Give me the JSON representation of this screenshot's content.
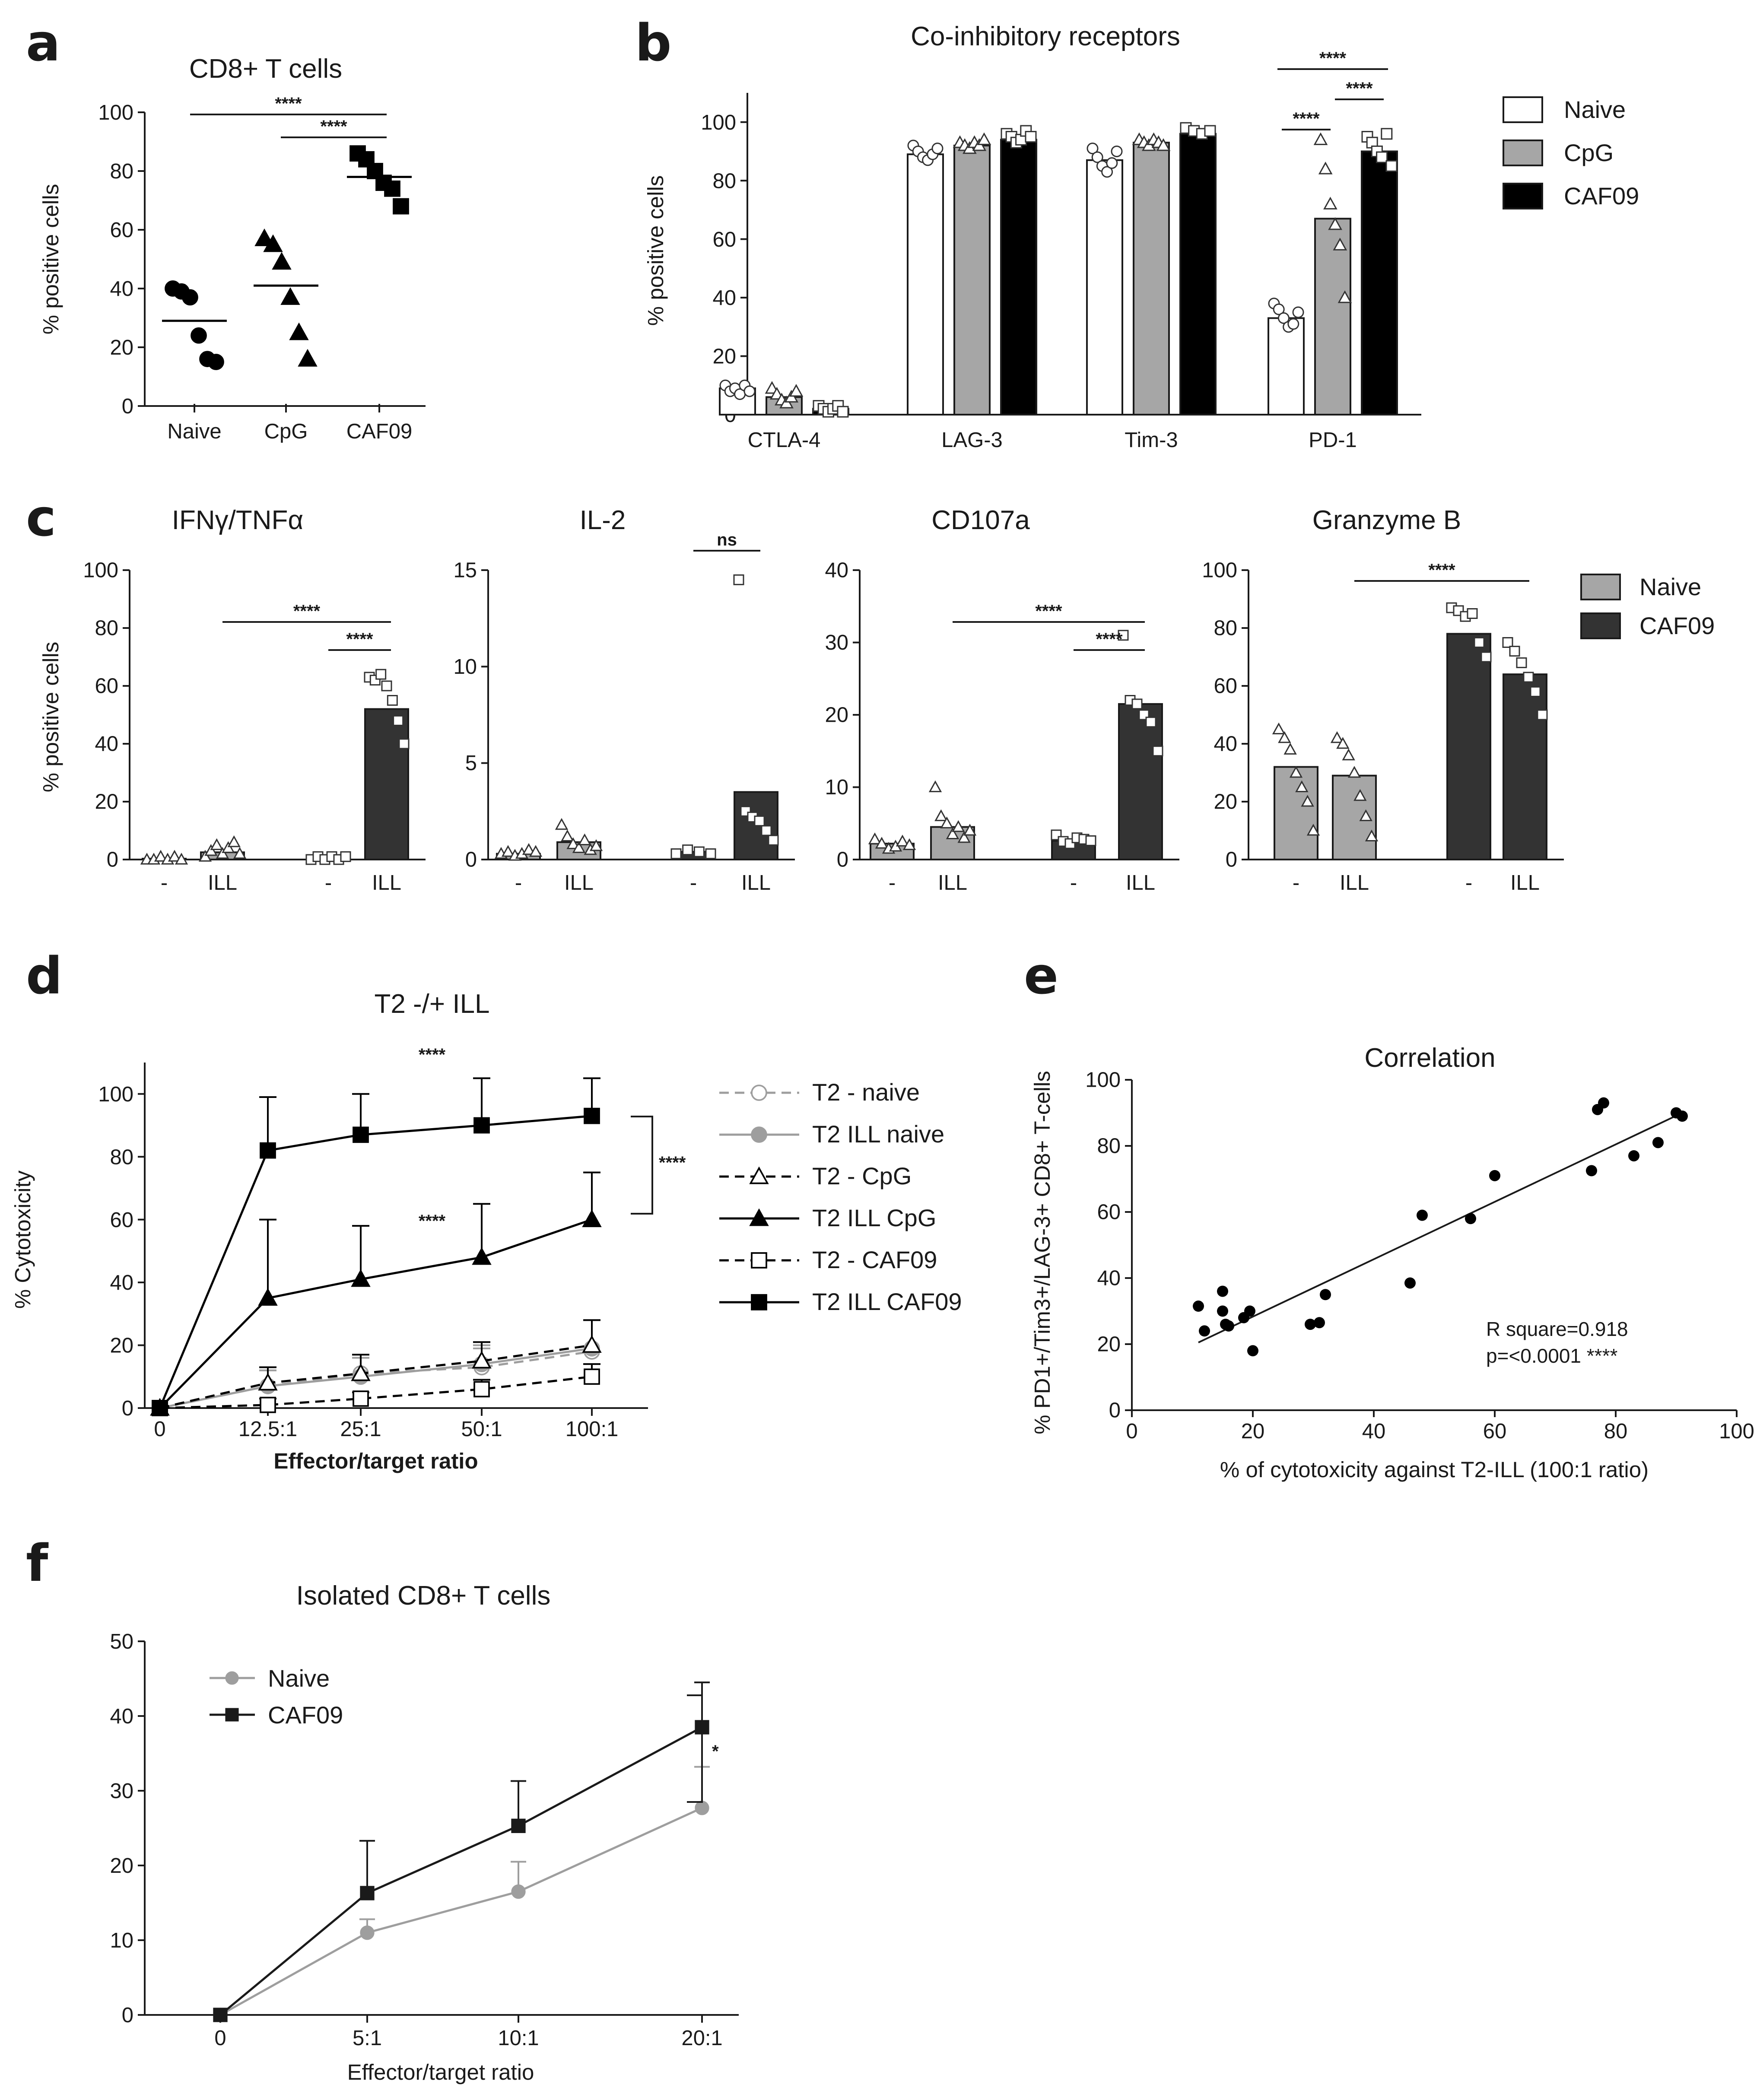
{
  "panels": {
    "a": {
      "letter": "a",
      "chart_data": {
        "type": "scatter",
        "title": "CD8+ T cells",
        "ylabel": "% positive cells",
        "ylim": [
          0,
          100
        ],
        "yticks": [
          0,
          20,
          40,
          60,
          80,
          100
        ],
        "categories": [
          "Naive",
          "CpG",
          "CAF09"
        ],
        "groups": [
          {
            "name": "Naive",
            "marker": "circle",
            "values": [
              40,
              39,
              37,
              24,
              16,
              15
            ],
            "mean": 29
          },
          {
            "name": "CpG",
            "marker": "triangle",
            "values": [
              57,
              55,
              49,
              37,
              25,
              16
            ],
            "mean": 41
          },
          {
            "name": "CAF09",
            "marker": "square",
            "values": [
              86,
              84,
              80,
              76,
              74,
              68
            ],
            "mean": 78
          }
        ],
        "annotations": [
          {
            "from": "Naive",
            "to": "CAF09",
            "label": "****"
          },
          {
            "from": "CpG",
            "to": "CAF09",
            "label": "****"
          }
        ]
      }
    },
    "b": {
      "letter": "b",
      "chart_data": {
        "type": "bar",
        "title": "Co-inhibitory receptors",
        "ylabel": "% positive cells",
        "ylim": [
          0,
          110
        ],
        "yticks": [
          0,
          20,
          40,
          60,
          80,
          100
        ],
        "categories": [
          "CTLA-4",
          "LAG-3",
          "Tim-3",
          "PD-1"
        ],
        "series": [
          {
            "name": "Naive",
            "color": "#ffffff",
            "marker": "circle",
            "values": [
              9,
              89,
              87,
              33
            ],
            "points": [
              [
                10,
                8,
                9,
                7,
                10,
                8
              ],
              [
                92,
                90,
                88,
                87,
                89,
                91
              ],
              [
                91,
                88,
                85,
                83,
                86,
                90
              ],
              [
                38,
                36,
                33,
                30,
                31,
                35
              ]
            ]
          },
          {
            "name": "CpG",
            "color": "#a6a6a6",
            "marker": "triangle",
            "values": [
              6,
              92,
              93,
              67
            ],
            "points": [
              [
                9,
                7,
                5,
                4,
                6,
                8
              ],
              [
                93,
                92,
                91,
                93,
                92,
                94
              ],
              [
                94,
                93,
                92,
                94,
                93,
                92
              ],
              [
                94,
                84,
                72,
                65,
                58,
                40
              ]
            ]
          },
          {
            "name": "CAF09",
            "color": "#000000",
            "marker": "square",
            "values": [
              2,
              94,
              96,
              90
            ],
            "points": [
              [
                3,
                2,
                1,
                2,
                3,
                1
              ],
              [
                96,
                95,
                93,
                94,
                97,
                95
              ],
              [
                98,
                97,
                96,
                97
              ],
              [
                95,
                93,
                90,
                88,
                96,
                85
              ]
            ]
          }
        ],
        "annotations": [
          {
            "category": "PD-1",
            "from": "Naive",
            "to": "CAF09",
            "label": "****"
          },
          {
            "category": "PD-1",
            "from": "Naive",
            "to": "CpG",
            "label": "****"
          },
          {
            "category": "PD-1",
            "from": "CpG",
            "to": "CAF09",
            "label": "****"
          }
        ],
        "legend": "right"
      }
    },
    "c": {
      "letter": "c",
      "legend_items": [
        {
          "name": "Naive",
          "color": "#a6a6a6"
        },
        {
          "name": "CAF09",
          "color": "#333333"
        }
      ],
      "chart_data": [
        {
          "type": "bar",
          "title": "IFNγ/TNFα",
          "ylabel": "% positive cells",
          "ylim": [
            0,
            100
          ],
          "yticks": [
            0,
            20,
            40,
            60,
            80,
            100
          ],
          "categories": [
            "-",
            "ILL",
            "-",
            "ILL"
          ],
          "groups": [
            "Naive",
            "Naive",
            "CAF09",
            "CAF09"
          ],
          "values": [
            0.3,
            2.5,
            0.5,
            52
          ],
          "points": [
            [
              0,
              0,
              1,
              0,
              1,
              0
            ],
            [
              1,
              3,
              5,
              2,
              4,
              6,
              2
            ],
            [
              0,
              1,
              0,
              1,
              0,
              1
            ],
            [
              63,
              62,
              64,
              60,
              55,
              48,
              40
            ]
          ],
          "annotations": [
            {
              "from": 1,
              "to": 3,
              "label": "****"
            },
            {
              "from": 2,
              "to": 3,
              "label": "****"
            }
          ]
        },
        {
          "type": "bar",
          "title": "IL-2",
          "ylabel": "",
          "ylim": [
            0,
            15
          ],
          "yticks": [
            0,
            5,
            10,
            15
          ],
          "categories": [
            "-",
            "ILL",
            "-",
            "ILL"
          ],
          "groups": [
            "Naive",
            "Naive",
            "CAF09",
            "CAF09"
          ],
          "values": [
            0.3,
            0.9,
            0.4,
            3.5
          ],
          "points": [
            [
              0.3,
              0.4,
              0.2,
              0.3,
              0.5,
              0.4
            ],
            [
              1.8,
              1.2,
              0.8,
              0.6,
              1.0,
              0.5,
              0.7
            ],
            [
              0.3,
              0.5,
              0.4,
              0.3
            ],
            [
              14.5,
              2.5,
              2.2,
              2.0,
              1.5,
              1.0
            ]
          ],
          "annotations": [
            {
              "from": 2,
              "to": 3,
              "label": "ns"
            }
          ]
        },
        {
          "type": "bar",
          "title": "CD107a",
          "ylabel": "",
          "ylim": [
            0,
            40
          ],
          "yticks": [
            0,
            10,
            20,
            30,
            40
          ],
          "categories": [
            "-",
            "ILL",
            "-",
            "ILL"
          ],
          "groups": [
            "Naive",
            "Naive",
            "CAF09",
            "CAF09"
          ],
          "values": [
            2.2,
            4.5,
            2.6,
            21.5
          ],
          "points": [
            [
              2.8,
              2.2,
              1.5,
              1.8,
              2.5,
              2.0
            ],
            [
              10,
              6,
              5,
              3.5,
              4.5,
              3,
              4
            ],
            [
              3.4,
              2.5,
              2.2,
              3.0,
              2.8,
              2.6
            ],
            [
              31,
              22,
              21.5,
              20,
              19,
              15
            ]
          ],
          "annotations": [
            {
              "from": 1,
              "to": 3,
              "label": "****"
            },
            {
              "from": 2,
              "to": 3,
              "label": "****"
            }
          ]
        },
        {
          "type": "bar",
          "title": "Granzyme B",
          "ylabel": "",
          "ylim": [
            0,
            100
          ],
          "yticks": [
            0,
            20,
            40,
            60,
            80,
            100
          ],
          "categories": [
            "-",
            "ILL",
            "-",
            "ILL"
          ],
          "groups": [
            "Naive",
            "Naive",
            "CAF09",
            "CAF09"
          ],
          "values": [
            32,
            29,
            78,
            64
          ],
          "points": [
            [
              45,
              42,
              38,
              30,
              25,
              20,
              10
            ],
            [
              42,
              40,
              36,
              30,
              22,
              15,
              8
            ],
            [
              87,
              86,
              84,
              85,
              75,
              70
            ],
            [
              75,
              72,
              68,
              63,
              58,
              50
            ]
          ],
          "annotations": [
            {
              "from": 1,
              "to": 3,
              "label": "****"
            }
          ]
        }
      ]
    },
    "d": {
      "letter": "d",
      "chart_data": {
        "type": "line",
        "title": "T2 -/+ ILL",
        "xlabel": "Effector/target ratio",
        "ylabel": "% Cytotoxicity",
        "ylim": [
          0,
          110
        ],
        "yticks": [
          0,
          20,
          40,
          60,
          80,
          100
        ],
        "x": [
          "0",
          "12.5:1",
          "25:1",
          "50:1",
          "100:1"
        ],
        "series": [
          {
            "name": "T2 - naive",
            "values": [
              0,
              7,
              11,
              13,
              18
            ],
            "err": [
              0,
              5,
              5,
              6,
              10
            ],
            "color": "#9e9e9e",
            "dashed": true,
            "marker": "circle",
            "filled": false
          },
          {
            "name": "T2 ILL naive",
            "values": [
              0,
              7,
              10,
              14,
              19
            ],
            "err": [
              0,
              5,
              6,
              6,
              9
            ],
            "color": "#9e9e9e",
            "dashed": false,
            "marker": "circle",
            "filled": true
          },
          {
            "name": "T2 - CpG",
            "values": [
              0,
              8,
              11,
              15,
              20
            ],
            "err": [
              0,
              5,
              6,
              6,
              8
            ],
            "color": "#000000",
            "dashed": true,
            "marker": "triangle",
            "filled": false
          },
          {
            "name": "T2 ILL CpG",
            "values": [
              0,
              35,
              41,
              48,
              60
            ],
            "err": [
              0,
              25,
              17,
              17,
              15
            ],
            "color": "#000000",
            "dashed": false,
            "marker": "triangle",
            "filled": true
          },
          {
            "name": "T2 - CAF09",
            "values": [
              0,
              1,
              3,
              6,
              10
            ],
            "err": [
              0,
              2,
              2,
              3,
              4
            ],
            "color": "#000000",
            "dashed": true,
            "marker": "square",
            "filled": false
          },
          {
            "name": "T2 ILL CAF09",
            "values": [
              0,
              82,
              87,
              90,
              93
            ],
            "err": [
              0,
              17,
              13,
              15,
              12
            ],
            "color": "#000000",
            "dashed": false,
            "marker": "square",
            "filled": true
          }
        ],
        "annotations": [
          {
            "label": "****",
            "position": "above CAF09 line"
          },
          {
            "label": "****",
            "position": "above CpG line"
          },
          {
            "label": "****",
            "position": "bracket right"
          }
        ],
        "legend": "right"
      }
    },
    "e": {
      "letter": "e",
      "chart_data": {
        "type": "scatter",
        "title": "Correlation",
        "xlabel": "% of cytotoxicity against T2-ILL (100:1 ratio)",
        "ylabel": "% PD1+/Tim3+/LAG-3+ CD8+ T-cells",
        "xlim": [
          0,
          100
        ],
        "ylim": [
          0,
          100
        ],
        "xticks": [
          0,
          20,
          40,
          60,
          80,
          100
        ],
        "yticks": [
          0,
          20,
          40,
          60,
          80,
          100
        ],
        "x": [
          11,
          12,
          15,
          15,
          15.5,
          16,
          18.5,
          19.5,
          20,
          29.5,
          31,
          32,
          46,
          48,
          56,
          60,
          76,
          77,
          78,
          83,
          87,
          90,
          91
        ],
        "y": [
          31.5,
          24,
          36,
          30,
          26,
          25.5,
          28,
          30,
          18,
          26,
          26.5,
          35,
          38.5,
          59,
          58,
          71,
          72.5,
          91,
          93,
          77,
          81,
          90,
          89
        ],
        "fit": {
          "x1": 11,
          "y1": 20.5,
          "x2": 91,
          "y2": 90
        },
        "annotations": [
          "R square=0.918",
          "p=<0.0001 ****"
        ]
      }
    },
    "f": {
      "letter": "f",
      "chart_data": {
        "type": "line",
        "title": "Isolated CD8+ T cells",
        "xlabel": "Effector/target ratio",
        "ylabel": "",
        "ylim": [
          0,
          50
        ],
        "yticks": [
          0,
          10,
          20,
          30,
          40,
          50
        ],
        "x": [
          "0",
          "5:1",
          "10:1",
          "20:1"
        ],
        "series": [
          {
            "name": "Naive",
            "values": [
              0,
              11,
              16.5,
              27.7
            ],
            "err": [
              0,
              1.8,
              4,
              5.5
            ],
            "color": "#9e9e9e",
            "marker": "circle"
          },
          {
            "name": "CAF09",
            "values": [
              0,
              16.3,
              25.3,
              38.5
            ],
            "err": [
              0,
              7,
              6,
              6
            ],
            "color": "#1a1a1a",
            "marker": "square"
          }
        ],
        "annotations": [
          {
            "label": "*",
            "position": "bracket right"
          }
        ],
        "legend": "top-left"
      }
    }
  }
}
